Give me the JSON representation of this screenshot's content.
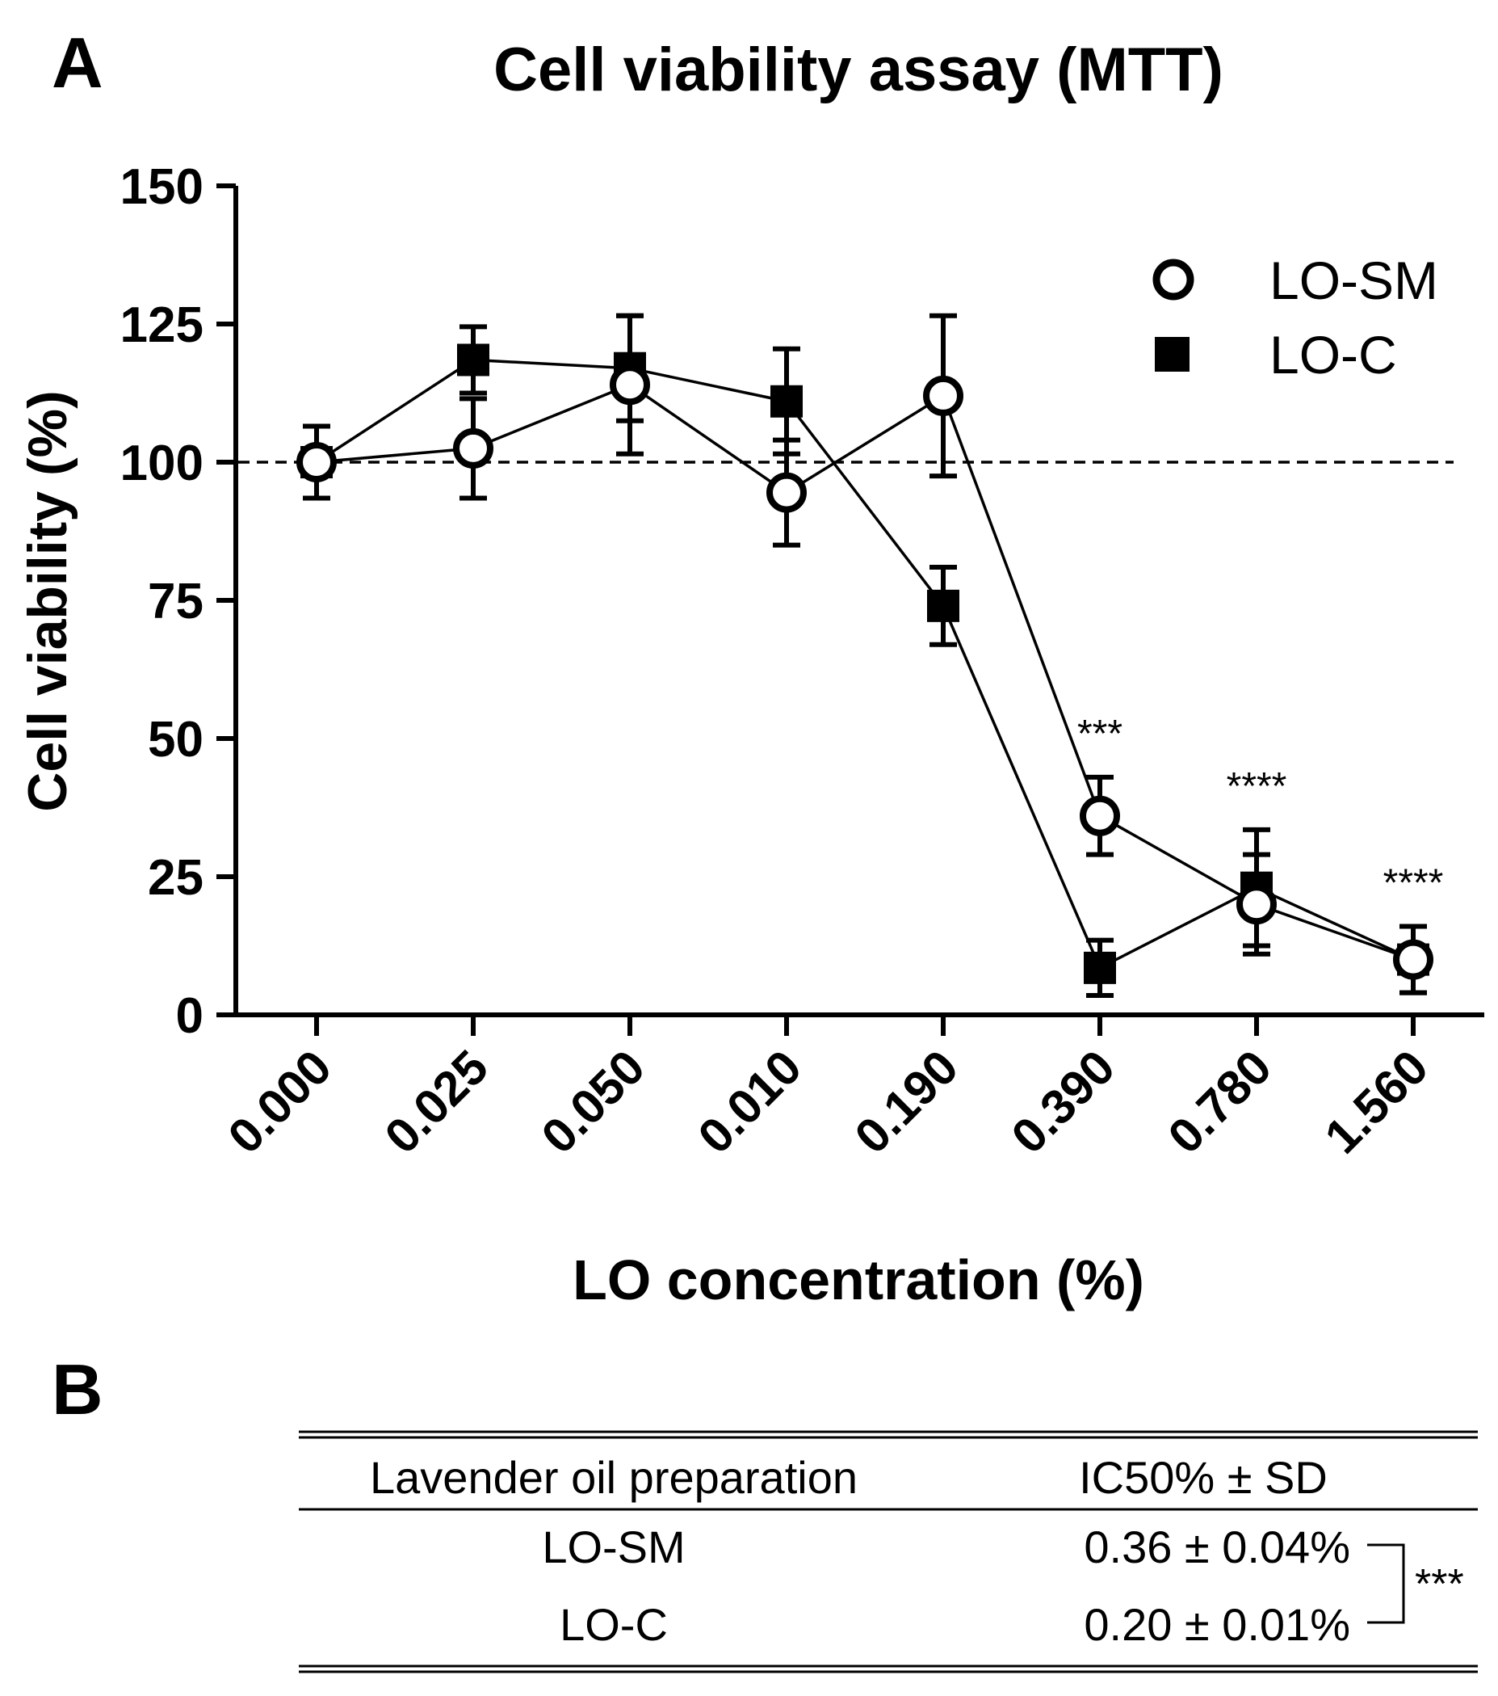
{
  "panels": {
    "a_label": "A",
    "b_label": "B"
  },
  "chart_data": {
    "type": "line",
    "title": "Cell viability assay (MTT)",
    "xlabel": "LO concentration (%)",
    "ylabel": "Cell viability (%)",
    "categories": [
      "0.000",
      "0.025",
      "0.050",
      "0.010",
      "0.190",
      "0.390",
      "0.780",
      "1.560"
    ],
    "ylim": [
      0,
      150
    ],
    "yticks": [
      "0",
      "25",
      "50",
      "75",
      "100",
      "125",
      "150"
    ],
    "reference_line": 100,
    "legend_position": "top-right",
    "series": [
      {
        "name": "LO-SM",
        "marker": "open-circle",
        "values": [
          100,
          102.5,
          114,
          94.5,
          112,
          36,
          20,
          10
        ],
        "errors": [
          6.5,
          9,
          12.5,
          9.5,
          14.5,
          7,
          9,
          6
        ]
      },
      {
        "name": "LO-C",
        "marker": "filled-square",
        "values": [
          100,
          118.5,
          117,
          111,
          74,
          8.5,
          23,
          10
        ],
        "errors": [
          6.5,
          6,
          9.5,
          9.5,
          7,
          5,
          10.5,
          6
        ]
      }
    ],
    "annotations": [
      {
        "category": "0.390",
        "text": "***"
      },
      {
        "category": "0.780",
        "text": "****"
      },
      {
        "category": "1.560",
        "text": "****"
      }
    ],
    "colors": {
      "ink": "#000000",
      "background": "#ffffff"
    }
  },
  "table": {
    "headers": [
      "Lavender oil preparation",
      "IC50% ± SD"
    ],
    "rows": [
      {
        "preparation": "LO-SM",
        "value": "0.36 ± 0.04%"
      },
      {
        "preparation": "LO-C",
        "value": "0.20 ± 0.01%"
      }
    ],
    "significance": "***"
  }
}
